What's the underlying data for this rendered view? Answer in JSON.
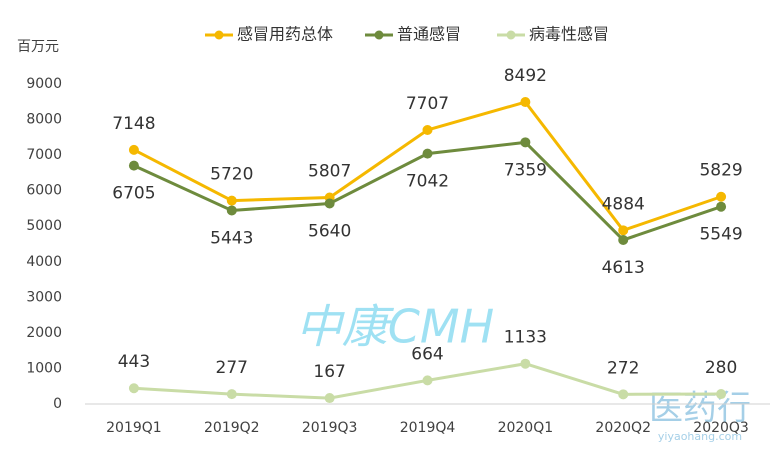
{
  "chart_data": {
    "type": "line",
    "y_axis_label": "百万元",
    "categories": [
      "2019Q1",
      "2019Q2",
      "2019Q3",
      "2019Q4",
      "2020Q1",
      "2020Q2",
      "2020Q3"
    ],
    "series": [
      {
        "name": "感冒用药总体",
        "color": "#f5b800",
        "values": [
          7148,
          5720,
          5807,
          7707,
          8492,
          4884,
          5829
        ]
      },
      {
        "name": "普通感冒",
        "color": "#6e8b3d",
        "values": [
          6705,
          5443,
          5640,
          7042,
          7359,
          4613,
          5549
        ]
      },
      {
        "name": "病毒性感冒",
        "color": "#c9dca6",
        "values": [
          443,
          277,
          167,
          664,
          1133,
          272,
          280
        ]
      }
    ],
    "ylim": [
      0,
      9000
    ],
    "yticks": [
      0,
      1000,
      2000,
      3000,
      4000,
      5000,
      6000,
      7000,
      8000,
      9000
    ],
    "grid": false,
    "legend": "top",
    "annotations": [
      "中康CMH",
      "医药行",
      "yiyaohang.com"
    ]
  }
}
